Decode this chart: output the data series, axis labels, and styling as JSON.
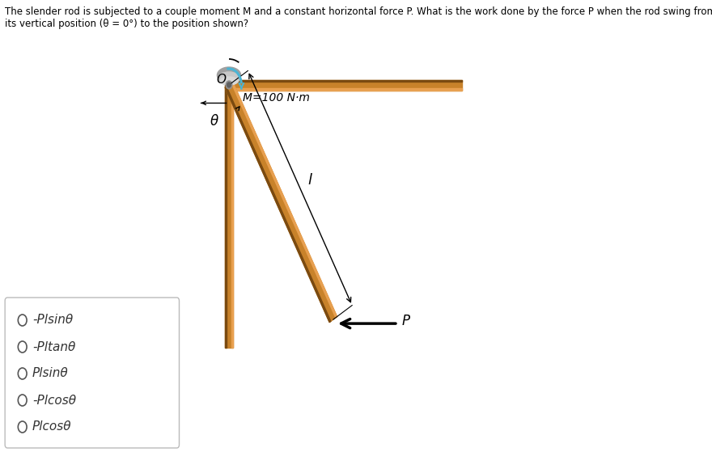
{
  "question_text_line1": "The slender rod is subjected to a couple moment M and a constant horizontal force P. What is the work done by the force P when the rod swing from",
  "question_text_line2": "its vertical position (θ = 0°) to the position shown?",
  "choices_display": [
    "-Plsinθ",
    "-Pltanθ",
    "Plsinθ",
    "-Plcosθ",
    "Plcosθ"
  ],
  "bg_color": "#ffffff",
  "rod_color": "#c8822a",
  "rod_dark": "#7a4a10",
  "moment_arc_color": "#4ab4d4",
  "label_M": "M=100 N·m",
  "label_theta": "θ",
  "label_l": "l",
  "label_P": "P",
  "label_O": "O"
}
